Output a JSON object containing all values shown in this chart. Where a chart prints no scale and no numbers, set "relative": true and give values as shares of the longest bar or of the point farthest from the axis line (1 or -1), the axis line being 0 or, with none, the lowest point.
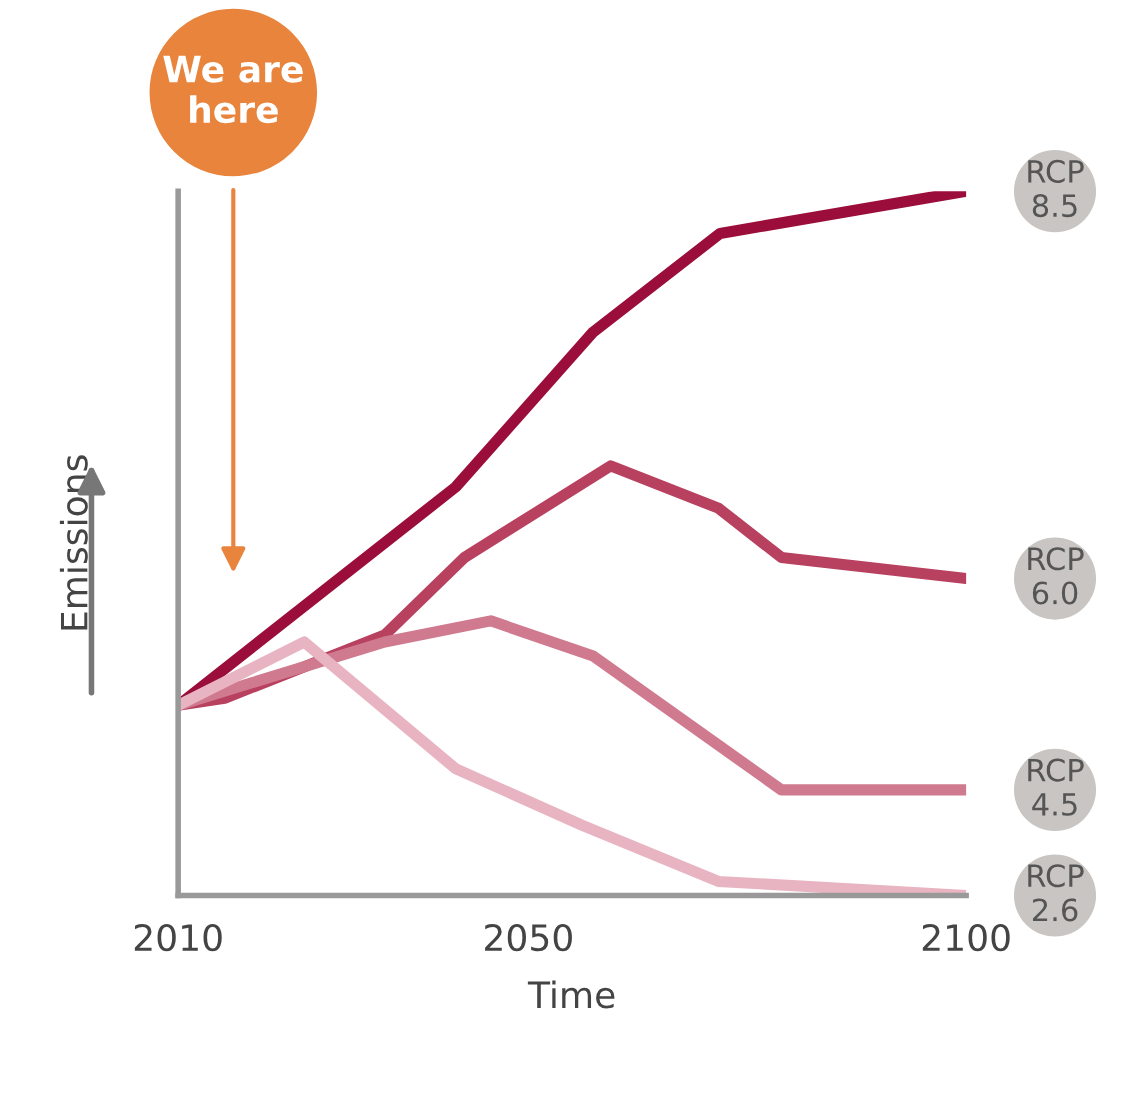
{
  "chart_data": {
    "type": "line",
    "relative": true,
    "xlabel": "Time",
    "ylabel": "Emissions",
    "xlim": [
      2010,
      2100
    ],
    "xticks": [
      2010,
      2050,
      2100
    ],
    "series": [
      {
        "name": "RCP 8.5",
        "color": "#9b0d3a",
        "x": [
          2010,
          2041.7,
          2057.4,
          2071.9,
          2100
        ],
        "values": [
          0.27,
          0.58,
          0.8,
          0.94,
          1.0
        ]
      },
      {
        "name": "RCP 6.0",
        "color": "#b8415f",
        "x": [
          2010,
          2015.3,
          2033.6,
          2042.7,
          2059.4,
          2071.7,
          2078.9,
          2100
        ],
        "values": [
          0.27,
          0.28,
          0.37,
          0.48,
          0.61,
          0.55,
          0.48,
          0.45
        ]
      },
      {
        "name": "RCP 4.5",
        "color": "#d07a90",
        "x": [
          2010,
          2033.6,
          2045.7,
          2057.4,
          2078.9,
          2100
        ],
        "values": [
          0.27,
          0.36,
          0.39,
          0.34,
          0.15,
          0.15
        ]
      },
      {
        "name": "RCP 2.6",
        "color": "#e8b4c2",
        "x": [
          2010,
          2024.4,
          2041.7,
          2056.1,
          2071.7,
          2100
        ],
        "values": [
          0.27,
          0.36,
          0.18,
          0.1,
          0.02,
          0
        ]
      }
    ],
    "annotations": [
      "We are here"
    ],
    "grid": false,
    "legend": false,
    "marker": "none",
    "line_style": "solid"
  }
}
